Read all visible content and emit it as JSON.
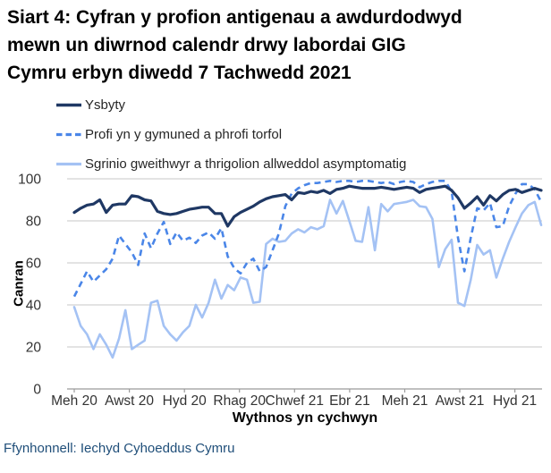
{
  "title_lines": [
    "Siart 4: Cyfran y profion antigenau a awdurdodwyd",
    "mewn un diwrnod calendr drwy labordai GIG",
    "Cymru erbyn diwedd 7 Tachwedd 2021"
  ],
  "legend": {
    "items": [
      {
        "label": "Ysbyty",
        "color": "#1f3864",
        "style": "solid"
      },
      {
        "label": "Profi yn y gymuned a phrofi torfol",
        "color": "#4a86e8",
        "style": "dashed"
      },
      {
        "label": "Sgrinio gweithwyr a thrigolion allweddol asymptomatig",
        "color": "#a4c2f4",
        "style": "solid"
      }
    ]
  },
  "source": "Ffynhonnell: Iechyd Cyhoeddus Cymru",
  "chart_data": {
    "type": "line",
    "xlabel": "Wythnos yn cychwyn",
    "ylabel": "Canran",
    "ylim": [
      0,
      100
    ],
    "y_ticks": [
      0,
      20,
      40,
      60,
      80,
      100
    ],
    "x_tick_labels": [
      "Meh 20",
      "Awst 20",
      "Hyd 20",
      "Rhag 20",
      "Chwef 21",
      "Ebr 21",
      "Meh 21",
      "Awst 21",
      "Hyd 21"
    ],
    "grid": true,
    "legend_position": "top-left",
    "grid_color": "#d2d2d2",
    "axis_color": "#9b9b9b",
    "tick_label_color": "#333333",
    "series": [
      {
        "name": "Ysbyty",
        "color": "#1f3864",
        "dash": "solid",
        "width": 3.2,
        "values": [
          84,
          86,
          87.5,
          88,
          90,
          84,
          87.5,
          88,
          88,
          92,
          91.5,
          90,
          89.5,
          84.5,
          83.5,
          83,
          83.5,
          84.5,
          85.5,
          86,
          86.5,
          86.5,
          83.5,
          83.5,
          77.5,
          82,
          84,
          85.5,
          87,
          89,
          90.5,
          91.5,
          92,
          92.5,
          90,
          93.5,
          93,
          94,
          93.5,
          94.5,
          93,
          95,
          95.5,
          96.5,
          96,
          95.5,
          95.5,
          95.5,
          96,
          95.5,
          95,
          95.5,
          96,
          95.5,
          93.5,
          95,
          95.5,
          96,
          96.5,
          94.5,
          91,
          86,
          88.5,
          91.5,
          87.5,
          92,
          89.5,
          92.5,
          94.5,
          95,
          93.5,
          94.5,
          95.5,
          94.5
        ]
      },
      {
        "name": "Profi yn y gymuned a phrofi torfol",
        "color": "#4a86e8",
        "dash": "dashed",
        "width": 2.6,
        "values": [
          44,
          50,
          56,
          51,
          54,
          57,
          62,
          73,
          69,
          65,
          59,
          74,
          67,
          74,
          79.5,
          69,
          74.5,
          70.5,
          72,
          69.5,
          73,
          74.5,
          71.5,
          76.5,
          63,
          57.5,
          55,
          60,
          62,
          56,
          58,
          66,
          74,
          87,
          93,
          95.5,
          97,
          98,
          98,
          98.5,
          99,
          98.5,
          99,
          99,
          98.5,
          99,
          99,
          98.5,
          98,
          98.5,
          97.5,
          98.5,
          99,
          98.5,
          96,
          97.5,
          98.5,
          99,
          99,
          94,
          72,
          56,
          72,
          86,
          85,
          88.5,
          77,
          77.5,
          87,
          93,
          97.5,
          97.5,
          95,
          89
        ]
      },
      {
        "name": "Sgrinio gweithwyr a thrigolion allweddol asymptomatig",
        "color": "#a4c2f4",
        "dash": "solid",
        "width": 2.6,
        "values": [
          39,
          30,
          26,
          19,
          26,
          21,
          15,
          24,
          37.5,
          19,
          21,
          23,
          41,
          42,
          30,
          26,
          23,
          27,
          30,
          40,
          34,
          41,
          52,
          43,
          49.5,
          47,
          53,
          52,
          41,
          41.5,
          69,
          71.5,
          70,
          70.5,
          74,
          76,
          74.5,
          77,
          76,
          77.5,
          90,
          83.5,
          89.5,
          80,
          70.5,
          70,
          86.5,
          66,
          88,
          84.5,
          88,
          88.5,
          89,
          90,
          87,
          86.5,
          81,
          58,
          66.5,
          71,
          41,
          39.5,
          52,
          68.5,
          64,
          66,
          53,
          62,
          70,
          77,
          83.5,
          87.5,
          89,
          78
        ]
      }
    ]
  }
}
